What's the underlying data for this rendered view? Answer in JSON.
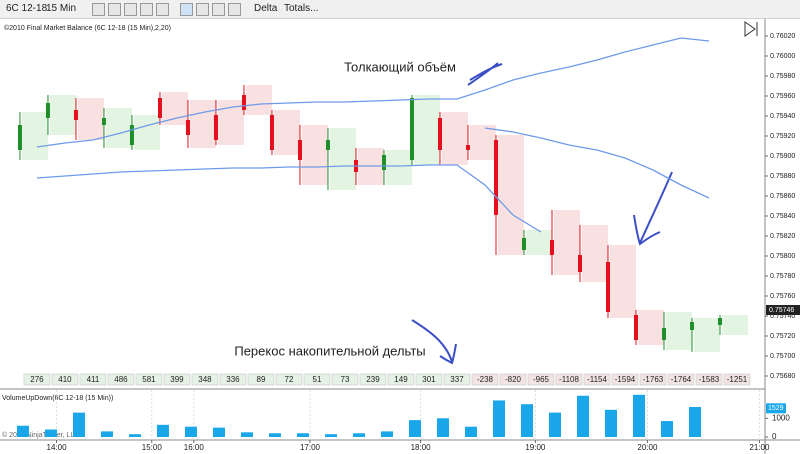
{
  "toolbar": {
    "instrument": "6C 12-18",
    "interval": "15 Min",
    "mode": "Delta",
    "totals": "Totals..."
  },
  "copyright": "© 2018 NinjaTrader, LLC",
  "chart_data": [
    {
      "type": "candlestick",
      "title": "©2010 Final Market Balance (6C 12-18 (15 Min),2,20)",
      "annotations": [
        "Толкающий объём",
        "Перекос накопительной дельты"
      ],
      "open": [
        0.75906,
        0.75938,
        0.75946,
        0.75931,
        0.75911,
        0.75958,
        0.75936,
        0.75941,
        0.75961,
        0.75941,
        0.75916,
        0.75906,
        0.75896,
        0.75886,
        0.75896,
        0.75938,
        0.75911,
        0.75916,
        0.75806,
        0.75816,
        0.75801,
        0.75794,
        0.75741,
        0.75716,
        0.75726,
        0.75731
      ],
      "high": [
        0.75944,
        0.75961,
        0.75958,
        0.75948,
        0.75941,
        0.75964,
        0.75956,
        0.75956,
        0.75971,
        0.75946,
        0.75931,
        0.75928,
        0.75908,
        0.75906,
        0.75961,
        0.75944,
        0.75931,
        0.75921,
        0.75826,
        0.75846,
        0.75831,
        0.75811,
        0.75746,
        0.75744,
        0.75738,
        0.75741
      ],
      "low": [
        0.75896,
        0.75921,
        0.75916,
        0.75908,
        0.75906,
        0.75931,
        0.75908,
        0.75911,
        0.75941,
        0.75901,
        0.75871,
        0.75866,
        0.75871,
        0.75871,
        0.75891,
        0.75891,
        0.75896,
        0.75801,
        0.75801,
        0.75781,
        0.75774,
        0.75738,
        0.75711,
        0.75706,
        0.75704,
        0.75721
      ],
      "close": [
        0.75931,
        0.75953,
        0.75936,
        0.75938,
        0.75931,
        0.75938,
        0.75921,
        0.75916,
        0.75946,
        0.75906,
        0.75896,
        0.75916,
        0.75884,
        0.75901,
        0.75958,
        0.75906,
        0.75906,
        0.75841,
        0.75818,
        0.75801,
        0.75784,
        0.75744,
        0.75716,
        0.75728,
        0.75734,
        0.75738
      ],
      "up_color": "#1f8f2a",
      "down_color": "#e3101e",
      "bands": [
        {
          "color": "#6f9ae8",
          "values": [
            0.75909,
            0.75913,
            0.75916,
            0.75923,
            0.75931,
            0.75938,
            0.75944,
            0.75949,
            0.75952,
            0.75953,
            0.75954,
            0.75954,
            0.75955,
            0.75956,
            0.75957,
            0.75957,
            0.75966,
            0.75976,
            0.75983,
            0.75989,
            0.75996,
            0.76004,
            0.76011,
            0.76018,
            0.76015,
            null
          ]
        },
        {
          "color": "#6f9ae8",
          "values": [
            0.75878,
            0.7588,
            0.75882,
            0.75884,
            0.75885,
            0.75886,
            0.75887,
            0.75888,
            0.75888,
            0.75889,
            0.75889,
            0.7589,
            0.7589,
            0.7589,
            0.75891,
            0.75891,
            0.75871,
            0.75841,
            0.75824,
            null,
            null,
            null,
            null,
            null,
            null,
            null
          ]
        },
        {
          "color": "#6f9ae8",
          "values": [
            null,
            null,
            null,
            null,
            null,
            null,
            null,
            null,
            null,
            null,
            null,
            null,
            null,
            null,
            null,
            null,
            0.75928,
            0.75924,
            0.75918,
            0.75911,
            0.75906,
            0.75898,
            0.75886,
            0.75871,
            0.75858,
            null
          ]
        }
      ],
      "totals": [
        276,
        410,
        411,
        486,
        581,
        399,
        348,
        336,
        89,
        72,
        51,
        73,
        239,
        149,
        301,
        337,
        -238,
        -820,
        -965,
        -1108,
        -1154,
        -1594,
        -1763,
        -1764,
        -1583,
        -1251
      ],
      "last_price": 0.75746,
      "ylim": [
        0.75674,
        0.76026
      ],
      "yticks": [
        {
          "value": 0.7602,
          "label": "0.76020"
        },
        {
          "value": 0.76,
          "label": "0.76000"
        },
        {
          "value": 0.7598,
          "label": "0.75980"
        },
        {
          "value": 0.7596,
          "label": "0.75960"
        },
        {
          "value": 0.7594,
          "label": "0.75940"
        },
        {
          "value": 0.7592,
          "label": "0.75920"
        },
        {
          "value": 0.759,
          "label": "0.75900"
        },
        {
          "value": 0.7588,
          "label": "0.75880"
        },
        {
          "value": 0.7586,
          "label": "0.75860"
        },
        {
          "value": 0.7584,
          "label": "0.75840"
        },
        {
          "value": 0.7582,
          "label": "0.75820"
        },
        {
          "value": 0.758,
          "label": "0.75800"
        },
        {
          "value": 0.7578,
          "label": "0.75780"
        },
        {
          "value": 0.7576,
          "label": "0.75760"
        },
        {
          "value": 0.7574,
          "label": "0.75740"
        },
        {
          "value": 0.7572,
          "label": "0.75720"
        },
        {
          "value": 0.757,
          "label": "0.75700"
        },
        {
          "value": 0.7568,
          "label": "0.75680"
        }
      ]
    },
    {
      "type": "bar",
      "title": "VolumeUpDown(6C 12-18 (15 Min))",
      "values": [
        600,
        400,
        1300,
        300,
        150,
        650,
        550,
        500,
        250,
        200,
        200,
        150,
        200,
        300,
        900,
        1000,
        550,
        1950,
        1750,
        1300,
        2200,
        1450,
        2250,
        850,
        1600,
        null
      ],
      "color": "#19a7ea",
      "last_value": 1529,
      "ylim": [
        0,
        2400
      ],
      "yticks": [
        0,
        1000
      ],
      "xlim": [
        -1.32,
        26
      ],
      "xticks": [
        {
          "value": 0.7,
          "label": "14:00"
        },
        {
          "value": 4.1,
          "label": "15:00"
        },
        {
          "value": 5.6,
          "label": "16:00"
        },
        {
          "value": 9.75,
          "label": "17:00"
        },
        {
          "value": 13.7,
          "label": "18:00"
        },
        {
          "value": 17.8,
          "label": "19:00"
        },
        {
          "value": 21.8,
          "label": "20:00"
        },
        {
          "value": 25.8,
          "label": "21:00"
        }
      ],
      "grid": true
    }
  ]
}
